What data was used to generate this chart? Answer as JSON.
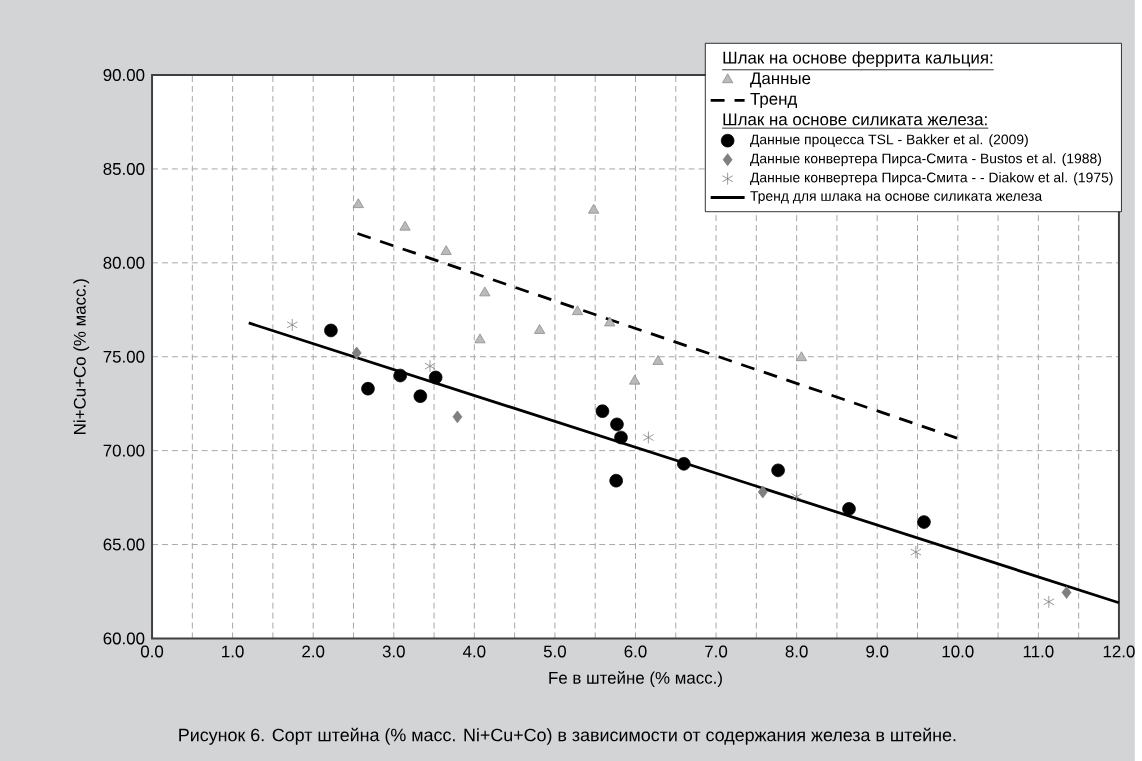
{
  "chart_data": {
    "type": "scatter",
    "xlabel": "Fe в штейне (% масс.)",
    "ylabel": "Ni+Cu+Co (% масс.)",
    "annotations": [
      "Шлак на основе феррита кальция:",
      "Шлак на основе силиката железа:",
      "Рисунок 6. Сорт штейна (% масс. Ni+Cu+Co) в зависимости от содержания железа в штейне."
    ],
    "xlim": [
      0,
      12
    ],
    "ylim": [
      60,
      90
    ],
    "xticks": [
      {
        "value": 0,
        "label": "0.0"
      },
      {
        "value": 0.5,
        "label": null
      },
      {
        "value": 1,
        "label": "1.0"
      },
      {
        "value": 1.5,
        "label": null
      },
      {
        "value": 2,
        "label": "2.0"
      },
      {
        "value": 2.5,
        "label": null
      },
      {
        "value": 3,
        "label": "3.0"
      },
      {
        "value": 3.5,
        "label": null
      },
      {
        "value": 4,
        "label": "4.0"
      },
      {
        "value": 4.5,
        "label": null
      },
      {
        "value": 5,
        "label": "5.0"
      },
      {
        "value": 5.5,
        "label": null
      },
      {
        "value": 6,
        "label": "6.0"
      },
      {
        "value": 6.5,
        "label": null
      },
      {
        "value": 7,
        "label": "7.0"
      },
      {
        "value": 7.5,
        "label": null
      },
      {
        "value": 8,
        "label": "8.0"
      },
      {
        "value": 8.5,
        "label": null
      },
      {
        "value": 9,
        "label": "9.0"
      },
      {
        "value": 9.5,
        "label": null
      },
      {
        "value": 10,
        "label": "10.0"
      },
      {
        "value": 10.5,
        "label": null
      },
      {
        "value": 11,
        "label": "11.0"
      },
      {
        "value": 11.5,
        "label": null
      },
      {
        "value": 12,
        "label": "12.0"
      }
    ],
    "yticks": [
      {
        "value": 60,
        "label": "60.00"
      },
      {
        "value": 65,
        "label": "65.00"
      },
      {
        "value": 70,
        "label": "70.00"
      },
      {
        "value": 75,
        "label": "75.00"
      },
      {
        "value": 80,
        "label": "80.00"
      },
      {
        "value": 85,
        "label": "85.00"
      },
      {
        "value": 90,
        "label": "90.00"
      }
    ],
    "grid": true,
    "legend": "top right",
    "series": [
      {
        "name": "Данные",
        "marker": "triangle",
        "color": "#8c8c8c",
        "x": [
          2.56,
          3.14,
          3.65,
          4.13,
          4.07,
          4.81,
          5.28,
          5.68,
          5.48,
          5.99,
          6.28,
          8.06
        ],
        "values": [
          83.1,
          81.9,
          80.6,
          78.4,
          75.9,
          76.4,
          77.4,
          76.8,
          82.8,
          73.7,
          74.75,
          74.95
        ]
      },
      {
        "name": "Тренд",
        "type": "line",
        "line_style": "dashed",
        "marker": "none",
        "color": "#000000",
        "x": [
          2.55,
          9.99
        ],
        "values": [
          81.56,
          70.67
        ]
      },
      {
        "name": "Данные процесса TSL - Bakker et al. (2009)",
        "marker": "circle",
        "color": "#000000",
        "x": [
          2.22,
          2.68,
          3.08,
          3.33,
          3.52,
          5.59,
          5.77,
          5.82,
          5.76,
          6.6,
          7.77,
          8.65,
          9.58
        ],
        "values": [
          76.4,
          73.3,
          74.0,
          72.9,
          73.9,
          72.1,
          71.4,
          70.7,
          68.4,
          69.3,
          68.95,
          66.9,
          66.2
        ]
      },
      {
        "name": "Данные конвертера Пирса-Смита - Bustos et al. (1988)",
        "marker": "diamond",
        "color": "#7f7f7f",
        "x": [
          2.54,
          3.79,
          7.58,
          11.35
        ],
        "values": [
          75.2,
          71.8,
          67.8,
          62.45
        ]
      },
      {
        "name": "Данные конвертера Пирса-Смита - - Diakow et al. (1975)",
        "marker": "cross",
        "color": "#808080",
        "x": [
          1.74,
          3.45,
          6.16,
          8.0,
          9.48,
          11.13
        ],
        "values": [
          76.7,
          74.5,
          70.7,
          67.55,
          64.6,
          61.95
        ]
      },
      {
        "name": "Тренд для шлака на основе силиката железа",
        "type": "line",
        "line_style": "solid",
        "marker": "none",
        "color": "#000000",
        "x": [
          1.2,
          12.0
        ],
        "values": [
          76.8,
          61.9
        ]
      }
    ]
  }
}
